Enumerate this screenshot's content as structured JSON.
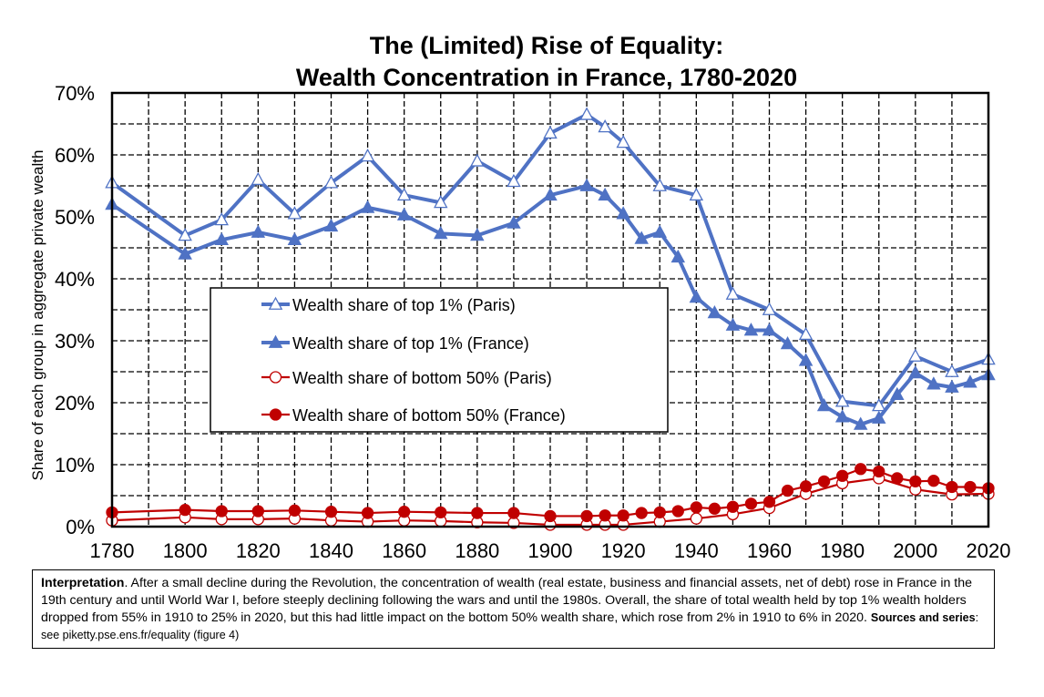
{
  "chart_data": {
    "type": "line",
    "title": [
      "The (Limited) Rise of Equality:",
      "Wealth Concentration in France, 1780-2020"
    ],
    "ylabel": "Share of each group in aggregate private wealth",
    "xlabel": "",
    "xlim": [
      1780,
      2020
    ],
    "ylim": [
      0,
      70
    ],
    "x_ticks": [
      1780,
      1800,
      1820,
      1840,
      1860,
      1880,
      1900,
      1920,
      1940,
      1960,
      1980,
      2000,
      2020
    ],
    "y_ticks": [
      0,
      10,
      20,
      30,
      40,
      50,
      60,
      70
    ],
    "y_tick_labels": [
      "0%",
      "10%",
      "20%",
      "30%",
      "40%",
      "50%",
      "60%",
      "70%"
    ],
    "grid": {
      "x": "major+minor",
      "y": "major+minor",
      "style": "dashed"
    },
    "legend_position": "center-left",
    "series": [
      {
        "name": "Wealth share of top 1% (Paris)",
        "color": "#4f72c4",
        "marker": "triangle-open",
        "x": [
          1780,
          1800,
          1810,
          1820,
          1830,
          1840,
          1850,
          1860,
          1870,
          1880,
          1890,
          1900,
          1910,
          1915,
          1920,
          1930,
          1940,
          1950,
          1960,
          1970,
          1980,
          1990,
          2000,
          2010,
          2020
        ],
        "y": [
          55.5,
          47,
          49.5,
          56,
          50.5,
          55.5,
          59.8,
          53.5,
          52.3,
          59,
          55.7,
          63.5,
          66.5,
          64.5,
          62,
          55,
          53.5,
          37.5,
          35,
          31,
          20.2,
          19.5,
          27.5,
          25,
          27
        ]
      },
      {
        "name": "Wealth share of top 1% (France)",
        "color": "#4f72c4",
        "marker": "triangle-filled",
        "x": [
          1780,
          1800,
          1810,
          1820,
          1830,
          1840,
          1850,
          1860,
          1870,
          1880,
          1890,
          1900,
          1910,
          1915,
          1920,
          1925,
          1930,
          1935,
          1940,
          1945,
          1950,
          1955,
          1960,
          1965,
          1970,
          1975,
          1980,
          1985,
          1990,
          1995,
          2000,
          2005,
          2010,
          2015,
          2020
        ],
        "y": [
          52,
          44,
          46.3,
          47.5,
          46.3,
          48.5,
          51.5,
          50.3,
          47.3,
          47,
          49,
          53.5,
          55,
          53.5,
          50.5,
          46.5,
          47.5,
          43.5,
          37,
          34.5,
          32.5,
          31.7,
          31.7,
          29.5,
          26.8,
          19.5,
          17.7,
          16.5,
          17.5,
          21.3,
          24.8,
          23,
          22.5,
          23.3,
          24.5
        ]
      },
      {
        "name": "Wealth share of bottom 50% (Paris)",
        "color": "#c00000",
        "marker": "circle-open",
        "x": [
          1780,
          1800,
          1810,
          1820,
          1830,
          1840,
          1850,
          1860,
          1870,
          1880,
          1890,
          1900,
          1910,
          1915,
          1920,
          1930,
          1940,
          1950,
          1960,
          1970,
          1980,
          1990,
          2000,
          2010,
          2020
        ],
        "y": [
          1,
          1.5,
          1.2,
          1.2,
          1.3,
          1,
          0.8,
          1,
          0.9,
          0.7,
          0.6,
          0.3,
          0.3,
          0.3,
          0.3,
          0.8,
          1.3,
          2,
          3,
          5.3,
          7,
          7.8,
          6,
          5.2,
          5.3
        ]
      },
      {
        "name": "Wealth share of bottom 50% (France)",
        "color": "#c00000",
        "marker": "circle-filled",
        "x": [
          1780,
          1800,
          1810,
          1820,
          1830,
          1840,
          1850,
          1860,
          1870,
          1880,
          1890,
          1900,
          1910,
          1915,
          1920,
          1925,
          1930,
          1935,
          1940,
          1945,
          1950,
          1955,
          1960,
          1965,
          1970,
          1975,
          1980,
          1985,
          1990,
          1995,
          2000,
          2005,
          2010,
          2015,
          2020
        ],
        "y": [
          2.3,
          2.7,
          2.5,
          2.5,
          2.6,
          2.4,
          2.2,
          2.4,
          2.3,
          2.2,
          2.2,
          1.7,
          1.7,
          1.8,
          1.8,
          2.2,
          2.3,
          2.5,
          3.1,
          2.9,
          3.2,
          3.7,
          4,
          5.8,
          6.5,
          7.3,
          8.2,
          9.3,
          8.9,
          7.8,
          7.3,
          7.4,
          6.4,
          6.4,
          6.2
        ]
      }
    ]
  },
  "note": {
    "lead": "Interpretation",
    "body": ". After a small decline during the Revolution, the concentration of wealth (real estate, business and financial assets, net of debt) rose in France in the 19th century and until World War I, before steeply declining following the wars and until the 1980s. Overall, the share of total wealth held by top 1% wealth holders dropped from 55% in 1910 to 25% in 2020, but this had little impact on the bottom 50% wealth share, which rose from 2% in 1910 to 6% in 2020.  ",
    "sources_label": "Sources and series",
    "sources_text": ": see piketty.pse.ens.fr/equality (figure 4)"
  }
}
